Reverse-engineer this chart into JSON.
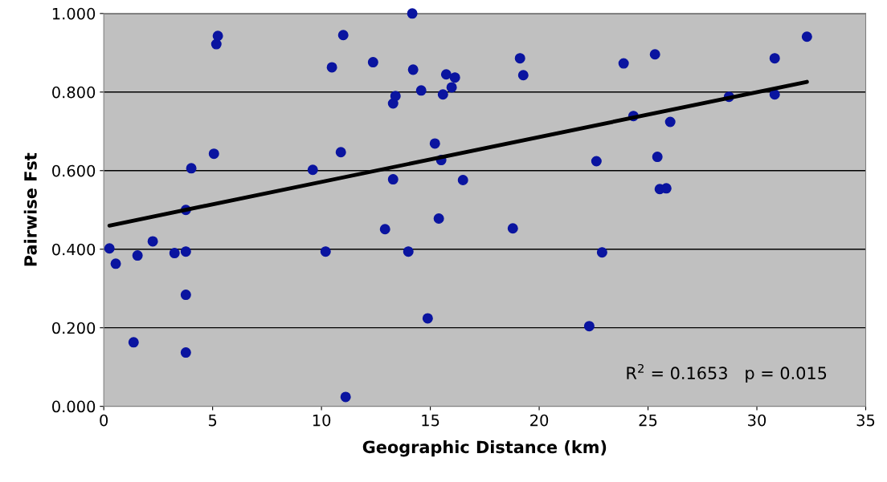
{
  "chart_data": {
    "type": "scatter",
    "xlabel": "Geographic Distance (km)",
    "ylabel": "Pairwise Fst",
    "xlim": [
      0,
      35
    ],
    "xticks": [
      0,
      5,
      10,
      15,
      20,
      25,
      30,
      35
    ],
    "ylim": [
      0,
      1
    ],
    "yticks": [
      {
        "value": 0,
        "label": "0.000"
      },
      {
        "value": 0.2,
        "label": "0.200"
      },
      {
        "value": 0.4,
        "label": "0.400"
      },
      {
        "value": 0.6,
        "label": "0.600"
      },
      {
        "value": 0.8,
        "label": "0.800"
      },
      {
        "value": 1,
        "label": "1.000"
      }
    ],
    "grid": "y",
    "marker": "circle",
    "annotations": [
      "R$^{2}$ = 0.1653   p = 0.015"
    ],
    "series": [
      {
        "color": "#0a14a0",
        "x": [
          0.26,
          0.55,
          1.37,
          1.55,
          2.25,
          3.25,
          3.77,
          3.77,
          3.77,
          3.77,
          4.02,
          5.06,
          5.17,
          5.24,
          9.6,
          10.19,
          10.48,
          10.89,
          11.0,
          11.11,
          12.37,
          12.92,
          13.29,
          13.29,
          13.4,
          13.99,
          14.17,
          14.21,
          14.58,
          14.88,
          15.21,
          15.39,
          15.5,
          15.58,
          15.73,
          15.98,
          16.13,
          16.5,
          18.79,
          19.12,
          19.27,
          22.3,
          22.63,
          22.89,
          23.88,
          24.33,
          25.32,
          25.43,
          25.54,
          25.84,
          26.02,
          28.72,
          30.82,
          30.82,
          32.3
        ],
        "values": [
          0.402,
          0.363,
          0.163,
          0.384,
          0.42,
          0.39,
          0.394,
          0.5,
          0.284,
          0.137,
          0.606,
          0.643,
          0.922,
          0.943,
          0.602,
          0.394,
          0.863,
          0.647,
          0.945,
          0.024,
          0.876,
          0.451,
          0.771,
          0.578,
          0.79,
          0.394,
          1.0,
          0.857,
          0.804,
          0.224,
          0.669,
          0.478,
          0.627,
          0.794,
          0.845,
          0.812,
          0.837,
          0.576,
          0.453,
          0.886,
          0.843,
          0.204,
          0.624,
          0.392,
          0.873,
          0.739,
          0.896,
          0.635,
          0.553,
          0.555,
          0.724,
          0.788,
          0.886,
          0.794,
          0.941
        ]
      },
      {
        "type": "line",
        "color": "#000000",
        "line_style": "solid",
        "marker": "none",
        "x": [
          0.26,
          32.3
        ],
        "values": [
          0.46,
          0.826
        ]
      }
    ]
  }
}
